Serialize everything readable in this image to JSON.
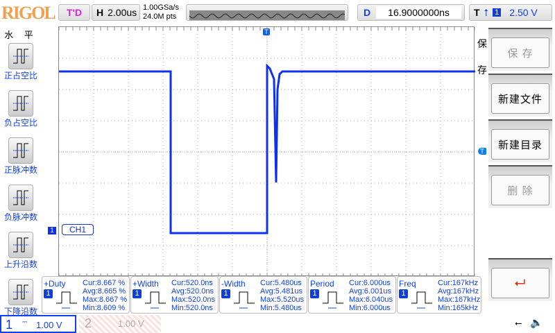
{
  "header": {
    "brand": "RIGOL",
    "run_state": "T'D",
    "timebase_label": "H",
    "timebase": "2.00us",
    "sample_rate": "1.00GSa/s",
    "memory_depth": "24.0M pts",
    "delay_label": "D",
    "delay": "16.9000000ns",
    "trigger_label": "T",
    "trigger_source": "1",
    "trigger_level": "2.50 V"
  },
  "left_menu": {
    "title": "水 平",
    "items": [
      {
        "label": "正占空比",
        "icon": "positive-duty-icon"
      },
      {
        "label": "负占空比",
        "icon": "negative-duty-icon"
      },
      {
        "label": "正脉冲数",
        "icon": "positive-pulse-count-icon"
      },
      {
        "label": "负脉冲数",
        "icon": "negative-pulse-count-icon"
      },
      {
        "label": "上升沿数",
        "icon": "rising-edge-count-icon"
      },
      {
        "label": "下降沿数",
        "icon": "falling-edge-count-icon"
      }
    ]
  },
  "right_menu": {
    "title": "保存",
    "items": [
      {
        "label": "保 存",
        "enabled": false
      },
      {
        "label": "新建文件",
        "enabled": true
      },
      {
        "label": "新建目录",
        "enabled": true
      },
      {
        "label": "删 除",
        "enabled": false
      }
    ],
    "back_icon": "return-arrow-icon"
  },
  "screen": {
    "channel_label": "CH1",
    "channel_marker": "1",
    "trigger_marker": "T",
    "trace_color": "#1030f0"
  },
  "measurements": [
    {
      "name": "+Duty",
      "source": "1",
      "cur": "Cur:8.667 %",
      "avg": "Avg:8.665 %",
      "max": "Max:8.667 %",
      "min": "Min:8.609 %"
    },
    {
      "name": "+Width",
      "source": "1",
      "cur": "Cur:520.0ns",
      "avg": "Avg:520.0ns",
      "max": "Max:520.0ns",
      "min": "Min:520.0ns"
    },
    {
      "name": "-Width",
      "source": "1",
      "cur": "Cur:5.480us",
      "avg": "Avg:5.481us",
      "max": "Max:5.520us",
      "min": "Min:5.480us"
    },
    {
      "name": "Period",
      "source": "1",
      "cur": "Cur:6.000us",
      "avg": "Avg:6.001us",
      "max": "Max:6.040us",
      "min": "Min:6.000us"
    },
    {
      "name": "Freq",
      "source": "1",
      "cur": "Cur:167kHz",
      "avg": "Avg:167kHz",
      "max": "Max:167kHz",
      "min": "Min:165kHz"
    }
  ],
  "channels": [
    {
      "num": "1",
      "scale": "1.00 V",
      "active": true
    },
    {
      "num": "2",
      "scale": "1.00 V",
      "active": false
    }
  ],
  "status_icons": [
    "usb-icon",
    "speaker-muted-icon"
  ]
}
